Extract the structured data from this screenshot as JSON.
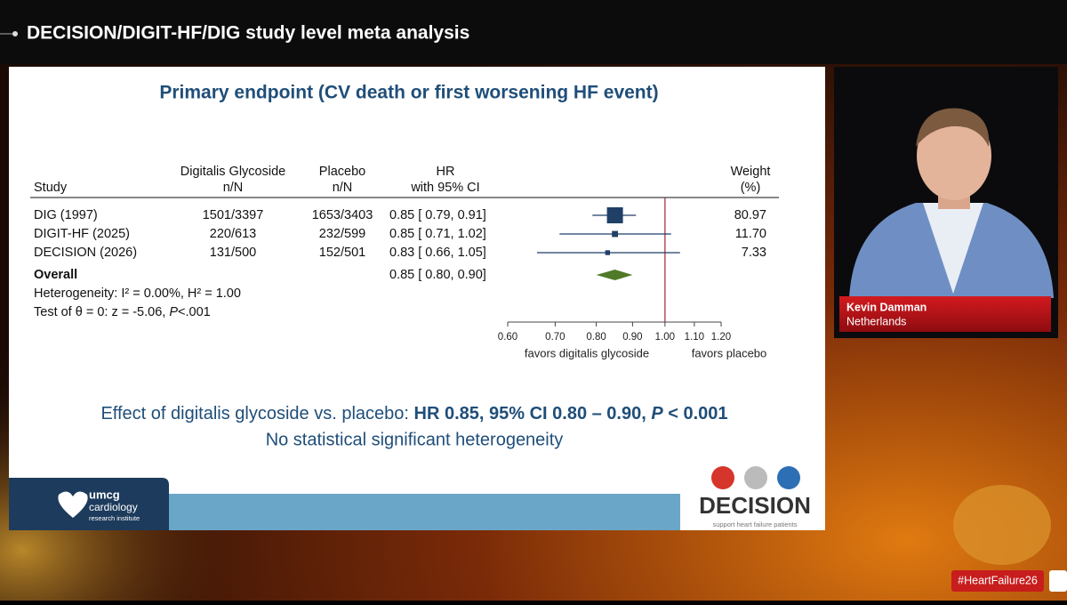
{
  "top_bar": {
    "title": "DECISION/DIGIT-HF/DIG study level meta analysis"
  },
  "slide": {
    "title": "Primary endpoint (CV death or first worsening HF event)",
    "columns": {
      "study": "Study",
      "treatment": [
        "Digitalis Glycoside",
        "n/N"
      ],
      "placebo": [
        "Placebo",
        "n/N"
      ],
      "hr": [
        "HR",
        "with 95% CI"
      ],
      "weight": [
        "Weight",
        "(%)"
      ]
    },
    "rows": [
      {
        "study": "DIG (1997)",
        "treatment": "1501/3397",
        "placebo": "1653/3403",
        "hr_ci": "0.85 [ 0.79, 0.91]",
        "hr": 0.85,
        "ci": [
          0.79,
          0.91
        ],
        "weight": "80.97"
      },
      {
        "study": "DIGIT-HF (2025)",
        "treatment": "220/613",
        "placebo": "232/599",
        "hr_ci": "0.85 [ 0.71, 1.02]",
        "hr": 0.85,
        "ci": [
          0.71,
          1.02
        ],
        "weight": "11.70"
      },
      {
        "study": "DECISION (2026)",
        "treatment": "131/500",
        "placebo": "152/501",
        "hr_ci": "0.83 [ 0.66, 1.05]",
        "hr": 0.83,
        "ci": [
          0.66,
          1.05
        ],
        "weight": "7.33"
      }
    ],
    "overall": {
      "label": "Overall",
      "hr_ci": "0.85 [ 0.80, 0.90]",
      "hr": 0.85,
      "ci": [
        0.8,
        0.9
      ]
    },
    "heterogeneity": "Heterogeneity: I² = 0.00%, H² = 1.00",
    "test": [
      "Test of θ = 0: z = -5.06, ",
      "P",
      "<.001"
    ],
    "axis": {
      "log_scale": true,
      "xlim": [
        0.6,
        1.2
      ],
      "xticks": [
        {
          "value": 0.6,
          "label": "0.60"
        },
        {
          "value": 0.7,
          "label": "0.70"
        },
        {
          "value": 0.8,
          "label": "0.80"
        },
        {
          "value": 0.9,
          "label": "0.90"
        },
        {
          "value": 1,
          "label": "1.00"
        },
        {
          "value": 1.1,
          "label": "1.10"
        },
        {
          "value": 1.2,
          "label": "1.20"
        }
      ],
      "null_line": 1,
      "left_label": "favors digitalis glycoside",
      "right_label": "favors placebo"
    },
    "summary": {
      "line1": [
        "Effect of digitalis glycoside vs. placebo: ",
        "HR 0.85, 95% CI 0.80 – 0.90, ",
        "P",
        " < 0.001"
      ],
      "line2": "No statistical significant heterogeneity"
    },
    "footer": {
      "institute": [
        "umcg",
        "cardiology",
        "research institute"
      ],
      "logo": "DECISION",
      "tagline": "support heart failure patients"
    }
  },
  "speaker": {
    "name": "Kevin Damman",
    "country": "Netherlands"
  },
  "hashtag": "#HeartFailure26"
}
